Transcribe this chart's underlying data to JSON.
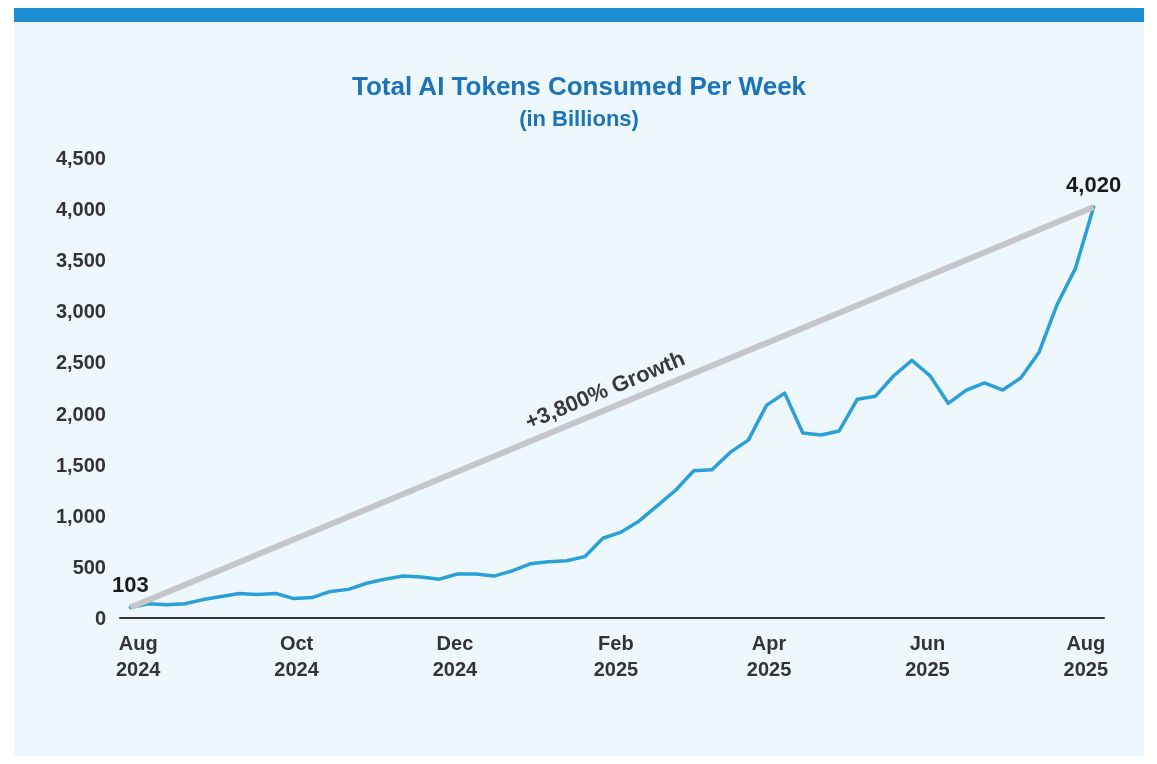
{
  "chart_data": {
    "type": "line",
    "title": "Total AI Tokens Consumed Per Week",
    "subtitle": "(in Billions)",
    "x": [
      "2024-07-29",
      "2024-08-05",
      "2024-08-12",
      "2024-08-19",
      "2024-08-26",
      "2024-09-02",
      "2024-09-09",
      "2024-09-16",
      "2024-09-23",
      "2024-09-30",
      "2024-10-07",
      "2024-10-14",
      "2024-10-21",
      "2024-10-28",
      "2024-11-04",
      "2024-11-11",
      "2024-11-18",
      "2024-11-25",
      "2024-12-02",
      "2024-12-09",
      "2024-12-16",
      "2024-12-23",
      "2024-12-30",
      "2025-01-06",
      "2025-01-13",
      "2025-01-20",
      "2025-01-27",
      "2025-02-03",
      "2025-02-10",
      "2025-02-17",
      "2025-02-24",
      "2025-03-03",
      "2025-03-10",
      "2025-03-17",
      "2025-03-24",
      "2025-03-31",
      "2025-04-07",
      "2025-04-14",
      "2025-04-21",
      "2025-04-28",
      "2025-05-05",
      "2025-05-12",
      "2025-05-19",
      "2025-05-26",
      "2025-06-02",
      "2025-06-09",
      "2025-06-16",
      "2025-06-23",
      "2025-06-30",
      "2025-07-07",
      "2025-07-14",
      "2025-07-21",
      "2025-07-28",
      "2025-08-04"
    ],
    "series": [
      {
        "color": "#2a9fd8",
        "values": [
          103,
          140,
          130,
          140,
          180,
          210,
          240,
          230,
          240,
          190,
          200,
          260,
          280,
          340,
          380,
          410,
          400,
          380,
          430,
          430,
          410,
          460,
          530,
          550,
          560,
          600,
          780,
          840,
          950,
          1100,
          1250,
          1440,
          1450,
          1620,
          1740,
          2080,
          2200,
          1810,
          1790,
          1830,
          2140,
          2170,
          2370,
          2520,
          2370,
          2100,
          2230,
          2300,
          2230,
          2350,
          2600,
          3070,
          3420,
          4020
        ],
        "value_labels": [
          "103",
          null,
          null,
          null,
          null,
          null,
          null,
          null,
          null,
          null,
          null,
          null,
          null,
          null,
          null,
          null,
          null,
          null,
          null,
          null,
          null,
          null,
          null,
          null,
          null,
          null,
          null,
          null,
          null,
          null,
          null,
          null,
          null,
          null,
          null,
          null,
          null,
          null,
          null,
          null,
          null,
          null,
          null,
          null,
          null,
          null,
          null,
          null,
          null,
          null,
          null,
          null,
          null,
          "4,020"
        ]
      }
    ],
    "annotations": [
      "+3,800% Growth"
    ],
    "xlim": [
      "2024-07-25",
      "2025-08-08"
    ],
    "xticks": [
      {
        "value": "2024-08-01",
        "label": "Aug\n2024"
      },
      {
        "value": "2024-10-01",
        "label": "Oct\n2024"
      },
      {
        "value": "2024-12-01",
        "label": "Dec\n2024"
      },
      {
        "value": "2025-02-01",
        "label": "Feb\n2025"
      },
      {
        "value": "2025-04-01",
        "label": "Apr\n2025"
      },
      {
        "value": "2025-06-01",
        "label": "Jun\n2025"
      },
      {
        "value": "2025-08-01",
        "label": "Aug\n2025"
      }
    ],
    "ylim": [
      0,
      4500
    ],
    "yticks": [
      0,
      500,
      {
        "value": 1000,
        "label": "1,000"
      },
      {
        "value": 1500,
        "label": "1,500"
      },
      {
        "value": 2000,
        "label": "2,000"
      },
      {
        "value": 2500,
        "label": "2,500"
      },
      {
        "value": 3000,
        "label": "3,000"
      },
      {
        "value": 3500,
        "label": "3,500"
      },
      {
        "value": 4000,
        "label": "4,000"
      },
      {
        "value": 4500,
        "label": "4,500"
      }
    ],
    "grid": false,
    "marker": "none",
    "line_style": "solid"
  }
}
